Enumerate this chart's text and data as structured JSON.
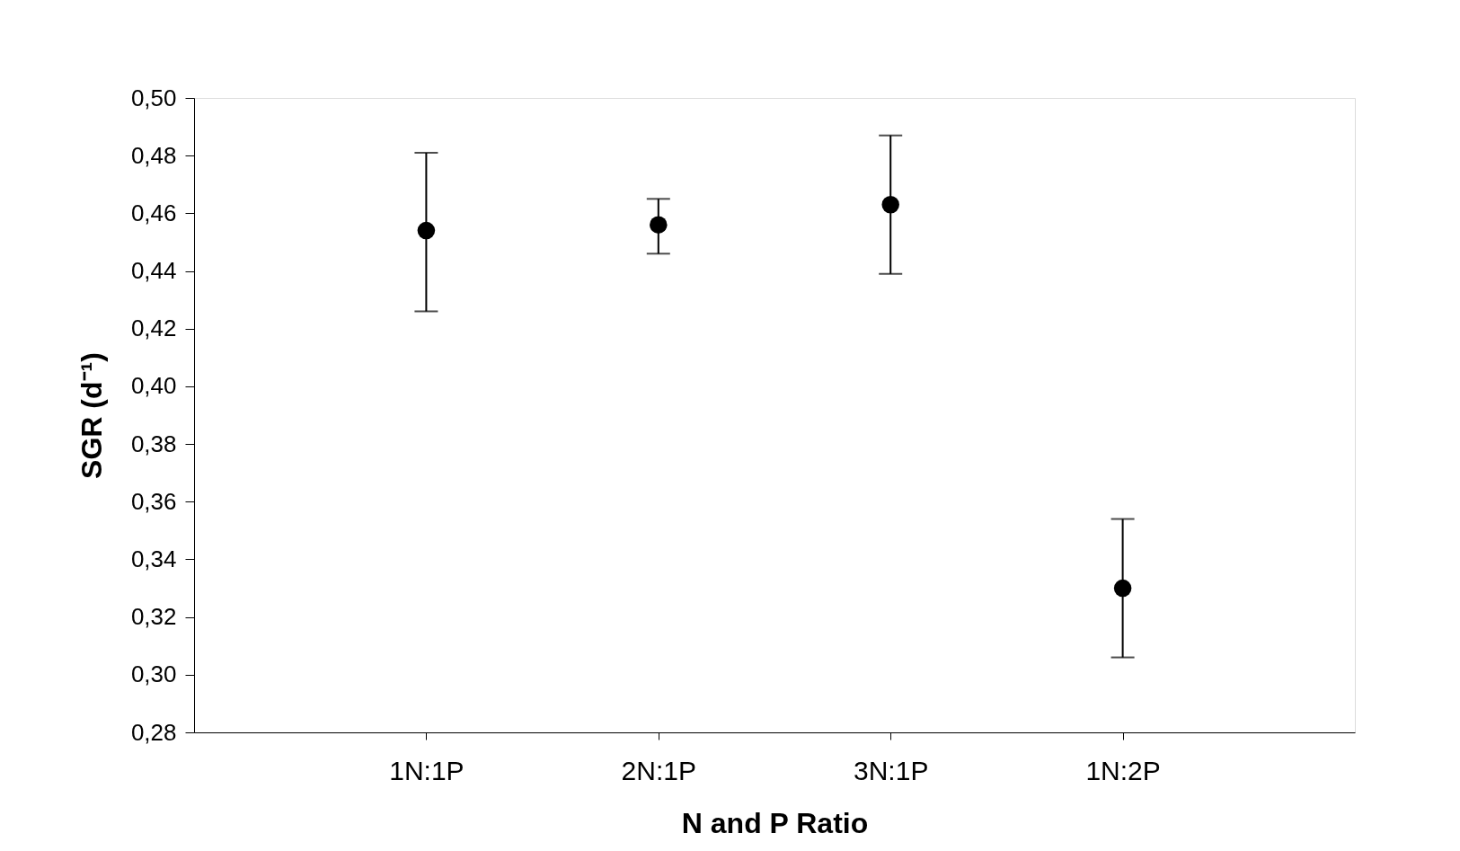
{
  "chart_data": {
    "type": "scatter",
    "xlabel": "N and P Ratio",
    "ylabel": "SGR (d⁻¹)",
    "categories": [
      "1N:1P",
      "2N:1P",
      "3N:1P",
      "1N:2P"
    ],
    "series": [
      {
        "color": "#000000",
        "values": [
          0.454,
          0.456,
          0.463,
          0.33
        ],
        "errors": [
          [
            0.426,
            0.481
          ],
          [
            0.446,
            0.465
          ],
          [
            0.439,
            0.487
          ],
          [
            0.306,
            0.354
          ]
        ]
      }
    ],
    "ylim": [
      0.28,
      0.5
    ],
    "yticks": [
      {
        "value": 0.28,
        "label": "0,28"
      },
      {
        "value": 0.3,
        "label": "0,30"
      },
      {
        "value": 0.32,
        "label": "0,32"
      },
      {
        "value": 0.34,
        "label": "0,34"
      },
      {
        "value": 0.36,
        "label": "0,36"
      },
      {
        "value": 0.38,
        "label": "0,38"
      },
      {
        "value": 0.4,
        "label": "0,40"
      },
      {
        "value": 0.42,
        "label": "0,42"
      },
      {
        "value": 0.44,
        "label": "0,44"
      },
      {
        "value": 0.46,
        "label": "0,46"
      },
      {
        "value": 0.48,
        "label": "0,48"
      },
      {
        "value": 0.5,
        "label": "0,50"
      }
    ],
    "grid": false,
    "legend": false,
    "marker": "circle"
  }
}
